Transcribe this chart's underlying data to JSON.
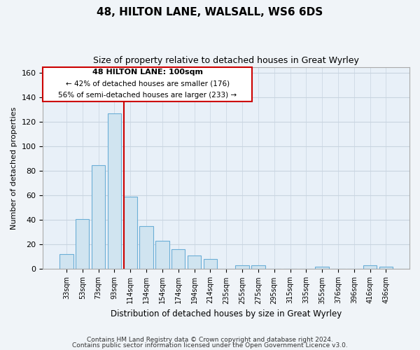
{
  "title": "48, HILTON LANE, WALSALL, WS6 6DS",
  "subtitle": "Size of property relative to detached houses in Great Wyrley",
  "xlabel": "Distribution of detached houses by size in Great Wyrley",
  "ylabel": "Number of detached properties",
  "bar_color": "#d0e4f0",
  "bar_edge_color": "#6baed6",
  "categories": [
    "33sqm",
    "53sqm",
    "73sqm",
    "93sqm",
    "114sqm",
    "134sqm",
    "154sqm",
    "174sqm",
    "194sqm",
    "214sqm",
    "235sqm",
    "255sqm",
    "275sqm",
    "295sqm",
    "315sqm",
    "335sqm",
    "355sqm",
    "376sqm",
    "396sqm",
    "416sqm",
    "436sqm"
  ],
  "values": [
    12,
    41,
    85,
    127,
    59,
    35,
    23,
    16,
    11,
    8,
    0,
    3,
    3,
    0,
    0,
    0,
    2,
    0,
    0,
    3,
    2
  ],
  "vline_x_index": 4,
  "vline_color": "#cc0000",
  "ylim": [
    0,
    165
  ],
  "yticks": [
    0,
    20,
    40,
    60,
    80,
    100,
    120,
    140,
    160
  ],
  "annotation_title": "48 HILTON LANE: 100sqm",
  "annotation_line1": "← 42% of detached houses are smaller (176)",
  "annotation_line2": "56% of semi-detached houses are larger (233) →",
  "footer1": "Contains HM Land Registry data © Crown copyright and database right 2024.",
  "footer2": "Contains public sector information licensed under the Open Government Licence v3.0.",
  "background_color": "#f0f4f8",
  "plot_background_color": "#e8f0f8",
  "grid_color": "#c8d4e0"
}
